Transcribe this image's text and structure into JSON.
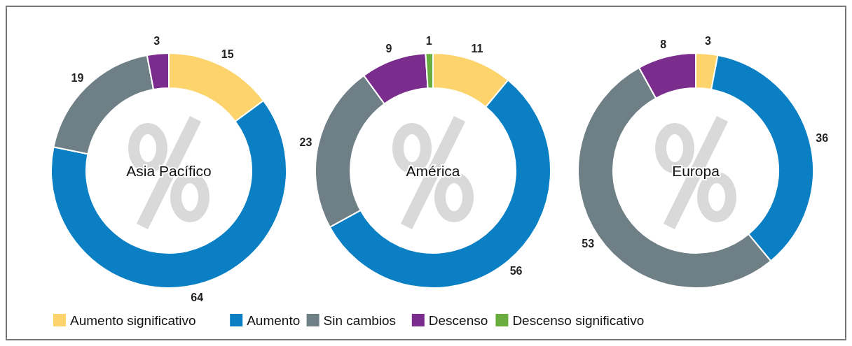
{
  "chart_data": [
    {
      "type": "donut",
      "title": "Asia Pacífico",
      "categories": [
        null,
        null,
        null,
        null
      ],
      "values": [
        15,
        64,
        19,
        3
      ],
      "colors": [
        "#fdd36b",
        "#0a7fc4",
        "#6e7f86",
        "#7b2d8e"
      ],
      "data_labels": true
    },
    {
      "type": "donut",
      "title": "América",
      "categories": [
        "Aumento significativo",
        "Aumento",
        "Sin cambios",
        "Descenso",
        "Descenso significativo"
      ],
      "values": [
        11,
        56,
        23,
        9,
        1
      ],
      "colors": [
        "#fdd36b",
        "#0a7fc4",
        "#6e7f86",
        "#7b2d8e",
        "#6aad3f"
      ],
      "data_labels": true,
      "legend": "bottom"
    },
    {
      "type": "donut",
      "title": "Europa",
      "categories": [
        null,
        null,
        null,
        null
      ],
      "values": [
        3,
        36,
        53,
        8
      ],
      "colors": [
        "#fdd36b",
        "#0a7fc4",
        "#6e7f86",
        "#7b2d8e"
      ],
      "data_labels": true
    }
  ]
}
